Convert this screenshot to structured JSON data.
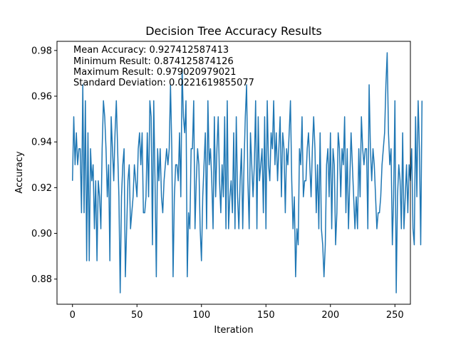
{
  "chart_data": {
    "type": "line",
    "title": "Decision Tree Accuracy Results",
    "xlabel": "Iteration",
    "ylabel": "Accuracy",
    "xlim": [
      -12,
      262
    ],
    "ylim": [
      0.869,
      0.984
    ],
    "xticks": [
      0,
      50,
      100,
      150,
      200,
      250
    ],
    "yticks": [
      0.88,
      0.9,
      0.92,
      0.94,
      0.96,
      0.98
    ],
    "ytick_labels": [
      "0.88",
      "0.90",
      "0.92",
      "0.94",
      "0.96",
      "0.98"
    ],
    "grid": false,
    "line_color": "#1f77b4",
    "annotations": [
      "Mean Accuracy: 0.927412587413",
      "Minimum Result: 0.874125874126",
      "Maximum Result: 0.979020979021",
      "Standard Deviation: 0.0221619855077"
    ],
    "series": [
      {
        "values": [
          0.923,
          0.951,
          0.93,
          0.944,
          0.93,
          0.937,
          0.937,
          0.909,
          0.965,
          0.909,
          0.958,
          0.888,
          0.944,
          0.888,
          0.937,
          0.923,
          0.93,
          0.902,
          0.923,
          0.888,
          0.923,
          0.916,
          0.902,
          0.937,
          0.958,
          0.951,
          0.937,
          0.916,
          0.93,
          0.888,
          0.951,
          0.937,
          0.923,
          0.944,
          0.958,
          0.937,
          0.916,
          0.874,
          0.916,
          0.93,
          0.937,
          0.881,
          0.902,
          0.923,
          0.93,
          0.902,
          0.909,
          0.916,
          0.93,
          0.923,
          0.916,
          0.937,
          0.944,
          0.93,
          0.944,
          0.909,
          0.909,
          0.916,
          0.944,
          0.916,
          0.958,
          0.951,
          0.895,
          0.958,
          0.923,
          0.881,
          0.937,
          0.923,
          0.937,
          0.916,
          0.909,
          0.923,
          0.93,
          0.937,
          0.93,
          0.937,
          0.965,
          0.937,
          0.881,
          0.916,
          0.93,
          0.93,
          0.923,
          0.944,
          0.916,
          0.972,
          0.951,
          0.944,
          0.958,
          0.881,
          0.909,
          0.902,
          0.937,
          0.937,
          0.958,
          0.902,
          0.923,
          0.937,
          0.93,
          0.902,
          0.888,
          0.916,
          0.93,
          0.944,
          0.902,
          0.958,
          0.93,
          0.937,
          0.923,
          0.902,
          0.951,
          0.916,
          0.937,
          0.951,
          0.923,
          0.909,
          0.93,
          0.916,
          0.951,
          0.902,
          0.958,
          0.902,
          0.916,
          0.923,
          0.909,
          0.944,
          0.902,
          0.951,
          0.916,
          0.902,
          0.923,
          0.937,
          0.902,
          0.93,
          0.951,
          0.965,
          0.923,
          0.902,
          0.944,
          0.93,
          0.916,
          0.93,
          0.958,
          0.902,
          0.951,
          0.923,
          0.93,
          0.937,
          0.909,
          0.951,
          0.902,
          0.958,
          0.93,
          0.923,
          0.944,
          0.937,
          0.958,
          0.93,
          0.944,
          0.923,
          0.937,
          0.951,
          0.916,
          0.944,
          0.937,
          0.909,
          0.937,
          0.93,
          0.944,
          0.958,
          0.923,
          0.902,
          0.916,
          0.881,
          0.902,
          0.895,
          0.937,
          0.93,
          0.951,
          0.916,
          0.923,
          0.923,
          0.937,
          0.944,
          0.93,
          0.916,
          0.937,
          0.951,
          0.937,
          0.909,
          0.93,
          0.902,
          0.944,
          0.902,
          0.895,
          0.881,
          0.895,
          0.93,
          0.937,
          0.916,
          0.944,
          0.902,
          0.937,
          0.93,
          0.895,
          0.909,
          0.944,
          0.937,
          0.916,
          0.937,
          0.93,
          0.951,
          0.909,
          0.937,
          0.902,
          0.923,
          0.944,
          0.93,
          0.916,
          0.902,
          0.916,
          0.902,
          0.937,
          0.916,
          0.951,
          0.937,
          0.93,
          0.937,
          0.937,
          0.902,
          0.965,
          0.937,
          0.923,
          0.937,
          0.93,
          0.916,
          0.902,
          0.909,
          0.909,
          0.916,
          0.93,
          0.937,
          0.944,
          0.965,
          0.979,
          0.944,
          0.93,
          0.937,
          0.895,
          0.916,
          0.958,
          0.874,
          0.916,
          0.93,
          0.923,
          0.902,
          0.944,
          0.902,
          0.916,
          0.93,
          0.909,
          0.93,
          0.923,
          0.937,
          0.902,
          0.895,
          0.951,
          0.916,
          0.958,
          0.937,
          0.895,
          0.958
        ]
      }
    ]
  }
}
